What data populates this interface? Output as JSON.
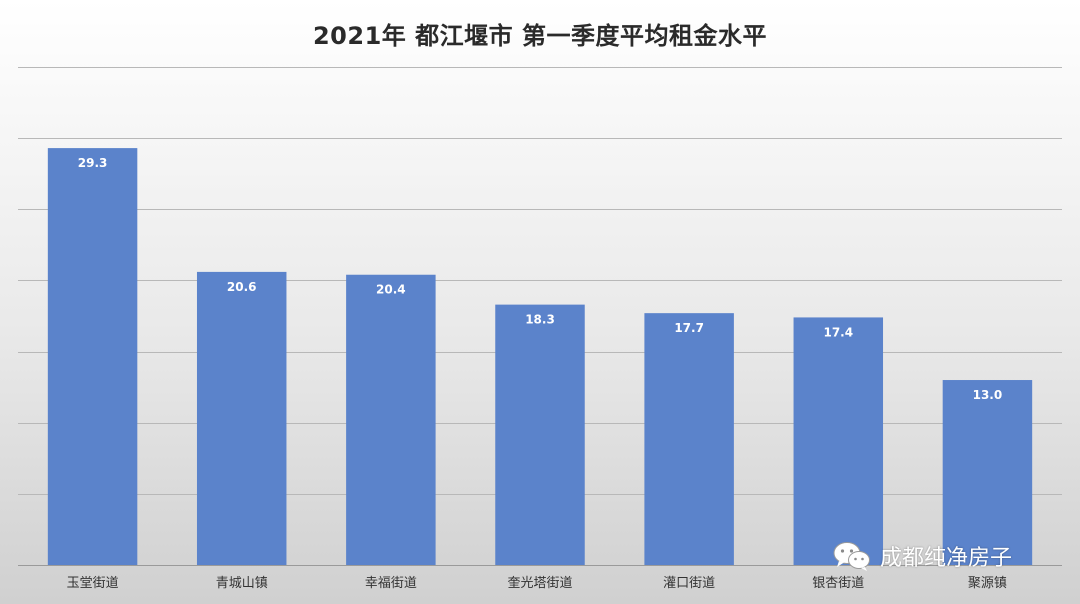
{
  "chart_data": {
    "type": "bar",
    "title": "2021年 都江堰市 第一季度平均租金水平",
    "categories": [
      "玉堂街道",
      "青城山镇",
      "幸福街道",
      "奎光塔街道",
      "灌口街道",
      "银杏街道",
      "聚源镇"
    ],
    "values": [
      29.3,
      20.6,
      20.4,
      18.3,
      17.7,
      17.4,
      13.0
    ],
    "data_labels": [
      "29.3",
      "20.6",
      "20.4",
      "18.3",
      "17.7",
      "17.4",
      "13.0"
    ],
    "xlabel": "",
    "ylabel": "",
    "ylim": [
      0,
      35
    ],
    "grid": true,
    "bar_color": "#5b83cb",
    "grid_color": "#b8b8b8",
    "label_color": "#ffffff"
  },
  "watermark": {
    "text": "成都纯净房子",
    "icon": "wechat-icon"
  }
}
